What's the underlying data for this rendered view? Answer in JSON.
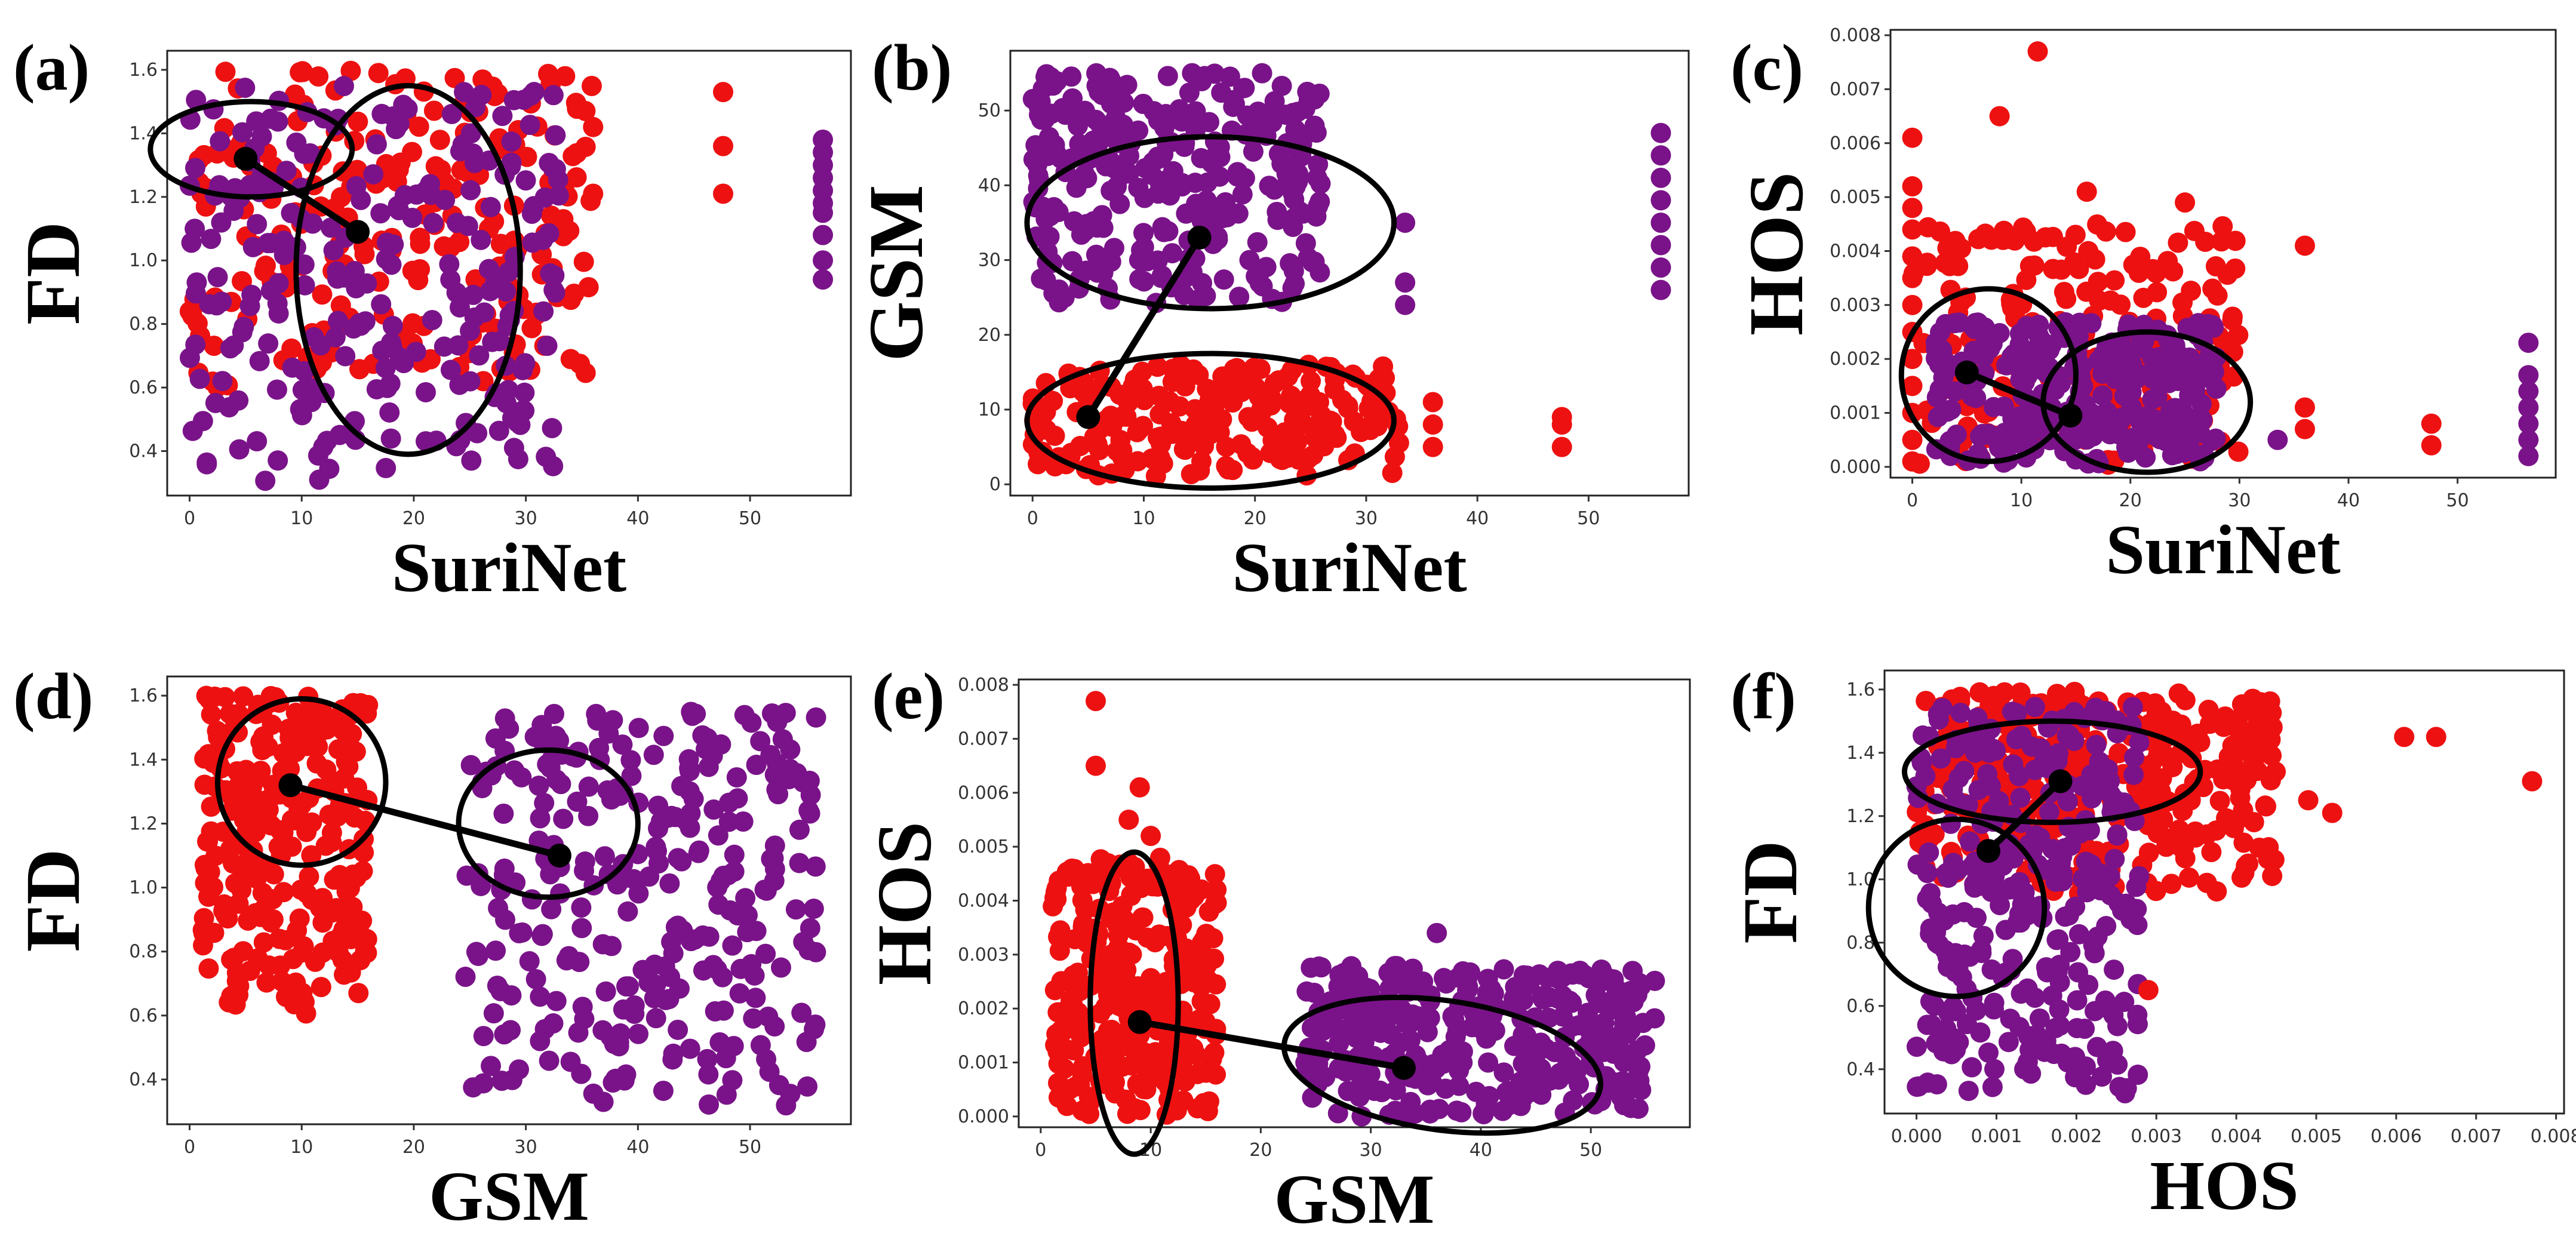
{
  "colors": {
    "red_cluster": "#ee1111",
    "purple_cluster": "#7a1389",
    "annotation": "#000000"
  },
  "chart_data": [
    {
      "id": "a",
      "label": "(a)",
      "type": "scatter",
      "xlabel": "SuriNet",
      "ylabel": "FD",
      "xlim": [
        -2,
        59
      ],
      "ylim": [
        0.26,
        1.66
      ],
      "xticks": [
        0,
        10,
        20,
        30,
        40,
        50
      ],
      "xtick_labels": [
        "0",
        "10",
        "20",
        "30",
        "40",
        "50"
      ],
      "yticks": [
        0.4,
        0.6,
        0.8,
        1.0,
        1.2,
        1.4,
        1.6
      ],
      "ytick_labels": [
        "0.4",
        "0.6",
        "0.8",
        "1.0",
        "1.2",
        "1.4",
        "1.6"
      ],
      "series": [
        {
          "color": "red",
          "x_range": [
            0,
            36
          ],
          "y_range": [
            0.6,
            1.6
          ],
          "count": 230,
          "seed": 11
        },
        {
          "color": "purple",
          "x_range": [
            0,
            33
          ],
          "y_range": [
            0.3,
            1.55
          ],
          "count": 260,
          "seed": 12
        }
      ],
      "points": [
        {
          "color": "red",
          "x": 47.6,
          "y": 1.53
        },
        {
          "color": "red",
          "x": 47.6,
          "y": 1.36
        },
        {
          "color": "red",
          "x": 47.6,
          "y": 1.21
        },
        {
          "color": "red",
          "x": 36,
          "y": 1.42
        },
        {
          "color": "red",
          "x": 36,
          "y": 1.21
        },
        {
          "color": "red",
          "x": 33.5,
          "y": 1.58
        },
        {
          "color": "purple",
          "x": 56.5,
          "y": 1.38
        },
        {
          "color": "purple",
          "x": 56.5,
          "y": 1.3
        },
        {
          "color": "purple",
          "x": 56.5,
          "y": 1.22
        },
        {
          "color": "purple",
          "x": 56.5,
          "y": 1.15
        },
        {
          "color": "purple",
          "x": 56.5,
          "y": 1.08
        },
        {
          "color": "purple",
          "x": 56.5,
          "y": 1.0
        },
        {
          "color": "purple",
          "x": 56.5,
          "y": 0.94
        },
        {
          "color": "purple",
          "x": 56.5,
          "y": 1.34
        },
        {
          "color": "purple",
          "x": 56.5,
          "y": 1.26
        },
        {
          "color": "purple",
          "x": 56.5,
          "y": 1.18
        }
      ],
      "centroids": [
        {
          "x": 5,
          "y": 1.32
        },
        {
          "x": 15,
          "y": 1.09
        }
      ],
      "ellipses": [
        {
          "cx": 5.5,
          "cy": 1.35,
          "rx": 9,
          "ry": 0.15,
          "rot": 0
        },
        {
          "cx": 19.5,
          "cy": 0.97,
          "rx": 10,
          "ry": 0.58,
          "rot": 0
        }
      ]
    },
    {
      "id": "b",
      "label": "(b)",
      "type": "scatter",
      "xlabel": "SuriNet",
      "ylabel": "GSM",
      "xlim": [
        -2,
        59
      ],
      "ylim": [
        -1.5,
        58
      ],
      "xticks": [
        0,
        10,
        20,
        30,
        40,
        50
      ],
      "xtick_labels": [
        "0",
        "10",
        "20",
        "30",
        "40",
        "50"
      ],
      "yticks": [
        0,
        10,
        20,
        30,
        40,
        50
      ],
      "ytick_labels": [
        "0",
        "10",
        "20",
        "30",
        "40",
        "50"
      ],
      "series": [
        {
          "color": "red",
          "x_range": [
            0,
            33
          ],
          "y_range": [
            1,
            16
          ],
          "count": 230,
          "seed": 21
        },
        {
          "color": "purple",
          "x_range": [
            0,
            26
          ],
          "y_range": [
            24,
            55
          ],
          "count": 300,
          "seed": 22
        }
      ],
      "points": [
        {
          "color": "red",
          "x": 36,
          "y": 11
        },
        {
          "color": "red",
          "x": 36,
          "y": 8
        },
        {
          "color": "red",
          "x": 36,
          "y": 5
        },
        {
          "color": "red",
          "x": 47.6,
          "y": 9
        },
        {
          "color": "red",
          "x": 47.6,
          "y": 8
        },
        {
          "color": "red",
          "x": 47.6,
          "y": 5
        },
        {
          "color": "purple",
          "x": 33.5,
          "y": 35
        },
        {
          "color": "purple",
          "x": 33.5,
          "y": 27
        },
        {
          "color": "purple",
          "x": 33.5,
          "y": 24
        },
        {
          "color": "purple",
          "x": 56.5,
          "y": 47
        },
        {
          "color": "purple",
          "x": 56.5,
          "y": 44
        },
        {
          "color": "purple",
          "x": 56.5,
          "y": 41
        },
        {
          "color": "purple",
          "x": 56.5,
          "y": 38
        },
        {
          "color": "purple",
          "x": 56.5,
          "y": 35
        },
        {
          "color": "purple",
          "x": 56.5,
          "y": 32
        },
        {
          "color": "purple",
          "x": 56.5,
          "y": 29
        },
        {
          "color": "purple",
          "x": 56.5,
          "y": 26
        }
      ],
      "centroids": [
        {
          "x": 5,
          "y": 9
        },
        {
          "x": 15,
          "y": 33
        }
      ],
      "ellipses": [
        {
          "cx": 16,
          "cy": 35,
          "rx": 16.5,
          "ry": 11.5,
          "rot": 0
        },
        {
          "cx": 16,
          "cy": 8.5,
          "rx": 16.5,
          "ry": 9,
          "rot": 0
        }
      ]
    },
    {
      "id": "c",
      "label": "(c)",
      "type": "scatter",
      "xlabel": "SuriNet",
      "ylabel": "HOS",
      "xlim": [
        -2,
        59
      ],
      "ylim": [
        -0.0002,
        0.0081
      ],
      "xticks": [
        0,
        10,
        20,
        30,
        40,
        50
      ],
      "xtick_labels": [
        "0",
        "10",
        "20",
        "30",
        "40",
        "50"
      ],
      "yticks": [
        0,
        0.001,
        0.002,
        0.003,
        0.004,
        0.005,
        0.006,
        0.007,
        0.008
      ],
      "ytick_labels": [
        "0.000",
        "0.001",
        "0.002",
        "0.003",
        "0.004",
        "0.005",
        "0.006",
        "0.007",
        "0.008"
      ],
      "series": [
        {
          "color": "red",
          "x_range": [
            0,
            30
          ],
          "y_range": [
            0,
            0.0045
          ],
          "count": 200,
          "seed": 31
        },
        {
          "color": "purple",
          "x_range": [
            2,
            28
          ],
          "y_range": [
            0,
            0.0027
          ],
          "count": 280,
          "seed": 32
        }
      ],
      "points": [
        {
          "color": "red",
          "x": 11.5,
          "y": 0.0077
        },
        {
          "color": "red",
          "x": 8,
          "y": 0.0065
        },
        {
          "color": "red",
          "x": 0,
          "y": 0.0061
        },
        {
          "color": "red",
          "x": 16,
          "y": 0.0051
        },
        {
          "color": "red",
          "x": 25,
          "y": 0.0049
        },
        {
          "color": "red",
          "x": 36,
          "y": 0.0041
        },
        {
          "color": "red",
          "x": 0,
          "y": 0.0052
        },
        {
          "color": "red",
          "x": 0,
          "y": 0.0048
        },
        {
          "color": "red",
          "x": 0,
          "y": 0.0044
        },
        {
          "color": "red",
          "x": 0,
          "y": 0.0039
        },
        {
          "color": "red",
          "x": 0,
          "y": 0.0035
        },
        {
          "color": "red",
          "x": 0,
          "y": 0.003
        },
        {
          "color": "red",
          "x": 0,
          "y": 0.0025
        },
        {
          "color": "red",
          "x": 0,
          "y": 0.002
        },
        {
          "color": "red",
          "x": 0,
          "y": 0.0015
        },
        {
          "color": "red",
          "x": 0,
          "y": 0.001
        },
        {
          "color": "red",
          "x": 0,
          "y": 0.0005
        },
        {
          "color": "red",
          "x": 0,
          "y": 0.0001
        },
        {
          "color": "red",
          "x": 47.6,
          "y": 0.0008
        },
        {
          "color": "red",
          "x": 47.6,
          "y": 0.0004
        },
        {
          "color": "red",
          "x": 36,
          "y": 0.0011
        },
        {
          "color": "red",
          "x": 36,
          "y": 0.0007
        },
        {
          "color": "purple",
          "x": 56.5,
          "y": 0.0023
        },
        {
          "color": "purple",
          "x": 56.5,
          "y": 0.0017
        },
        {
          "color": "purple",
          "x": 56.5,
          "y": 0.0014
        },
        {
          "color": "purple",
          "x": 56.5,
          "y": 0.0011
        },
        {
          "color": "purple",
          "x": 56.5,
          "y": 0.0008
        },
        {
          "color": "purple",
          "x": 56.5,
          "y": 0.0005
        },
        {
          "color": "purple",
          "x": 56.5,
          "y": 0.0002
        },
        {
          "color": "purple",
          "x": 33.5,
          "y": 0.0005
        }
      ],
      "centroids": [
        {
          "x": 5,
          "y": 0.00175
        },
        {
          "x": 14.5,
          "y": 0.00095
        }
      ],
      "ellipses": [
        {
          "cx": 7,
          "cy": 0.0017,
          "rx": 8,
          "ry": 0.0016,
          "rot": 0
        },
        {
          "cx": 21.5,
          "cy": 0.0012,
          "rx": 9.5,
          "ry": 0.0013,
          "rot": 0
        }
      ]
    },
    {
      "id": "d",
      "label": "(d)",
      "type": "scatter",
      "xlabel": "GSM",
      "ylabel": "FD",
      "xlim": [
        -2,
        59
      ],
      "ylim": [
        0.26,
        1.66
      ],
      "xticks": [
        0,
        10,
        20,
        30,
        40,
        50
      ],
      "xtick_labels": [
        "0",
        "10",
        "20",
        "30",
        "40",
        "50"
      ],
      "yticks": [
        0.4,
        0.6,
        0.8,
        1.0,
        1.2,
        1.4,
        1.6
      ],
      "ytick_labels": [
        "0.4",
        "0.6",
        "0.8",
        "1.0",
        "1.2",
        "1.4",
        "1.6"
      ],
      "series": [
        {
          "color": "red",
          "x_range": [
            1,
            16
          ],
          "y_range": [
            0.6,
            1.6
          ],
          "count": 260,
          "seed": 41
        },
        {
          "color": "purple",
          "x_range": [
            24,
            56
          ],
          "y_range": [
            0.3,
            1.55
          ],
          "count": 300,
          "seed": 42
        }
      ],
      "points": [],
      "centroids": [
        {
          "x": 9,
          "y": 1.32
        },
        {
          "x": 33,
          "y": 1.1
        }
      ],
      "ellipses": [
        {
          "cx": 10,
          "cy": 1.33,
          "rx": 7.5,
          "ry": 0.26,
          "rot": 0
        },
        {
          "cx": 32,
          "cy": 1.2,
          "rx": 8,
          "ry": 0.23,
          "rot": 0
        }
      ]
    },
    {
      "id": "e",
      "label": "(e)",
      "type": "scatter",
      "xlabel": "GSM",
      "ylabel": "HOS",
      "xlim": [
        -2,
        59
      ],
      "ylim": [
        -0.0002,
        0.0081
      ],
      "xticks": [
        0,
        10,
        20,
        30,
        40,
        50
      ],
      "xtick_labels": [
        "0",
        "10",
        "20",
        "30",
        "40",
        "50"
      ],
      "yticks": [
        0,
        0.001,
        0.002,
        0.003,
        0.004,
        0.005,
        0.006,
        0.007,
        0.008
      ],
      "ytick_labels": [
        "0.000",
        "0.001",
        "0.002",
        "0.003",
        "0.004",
        "0.005",
        "0.006",
        "0.007",
        "0.008"
      ],
      "series": [
        {
          "color": "red",
          "x_range": [
            1,
            16
          ],
          "y_range": [
            0,
            0.0048
          ],
          "count": 300,
          "seed": 51
        },
        {
          "color": "purple",
          "x_range": [
            24,
            56
          ],
          "y_range": [
            0,
            0.0028
          ],
          "count": 320,
          "seed": 52
        }
      ],
      "points": [
        {
          "color": "red",
          "x": 5,
          "y": 0.0077
        },
        {
          "color": "red",
          "x": 5,
          "y": 0.0065
        },
        {
          "color": "red",
          "x": 9,
          "y": 0.0061
        },
        {
          "color": "red",
          "x": 10,
          "y": 0.0052
        },
        {
          "color": "red",
          "x": 8,
          "y": 0.0055
        },
        {
          "color": "purple",
          "x": 36,
          "y": 0.0034
        },
        {
          "color": "purple",
          "x": 47,
          "y": 0.0027
        },
        {
          "color": "purple",
          "x": 49,
          "y": 0.0027
        }
      ],
      "centroids": [
        {
          "x": 9,
          "y": 0.00175
        },
        {
          "x": 33,
          "y": 0.0009
        }
      ],
      "ellipses": [
        {
          "cx": 8.5,
          "cy": 0.0021,
          "rx": 4,
          "ry": 0.0028,
          "rot": 0
        },
        {
          "cx": 36.5,
          "cy": 0.00095,
          "rx": 14.5,
          "ry": 0.0012,
          "rot": 8
        }
      ]
    },
    {
      "id": "f",
      "label": "(f)",
      "type": "scatter",
      "xlabel": "HOS",
      "ylabel": "FD",
      "xlim": [
        -0.0004,
        0.0081
      ],
      "ylim": [
        0.26,
        1.66
      ],
      "xticks": [
        0,
        0.001,
        0.002,
        0.003,
        0.004,
        0.005,
        0.006,
        0.007,
        0.008
      ],
      "xtick_labels": [
        "0.000",
        "0.001",
        "0.002",
        "0.003",
        "0.004",
        "0.005",
        "0.006",
        "0.007",
        "0.008"
      ],
      "yticks": [
        0.4,
        0.6,
        0.8,
        1.0,
        1.2,
        1.4,
        1.6
      ],
      "ytick_labels": [
        "0.4",
        "0.6",
        "0.8",
        "1.0",
        "1.2",
        "1.4",
        "1.6"
      ],
      "series": [
        {
          "color": "red",
          "x_range": [
            0,
            0.0045
          ],
          "y_range": [
            0.95,
            1.6
          ],
          "count": 330,
          "seed": 61
        },
        {
          "color": "purple",
          "x_range": [
            0,
            0.0028
          ],
          "y_range": [
            0.3,
            1.55
          ],
          "count": 320,
          "seed": 62
        }
      ],
      "points": [
        {
          "color": "red",
          "x": 0.0061,
          "y": 1.45
        },
        {
          "color": "red",
          "x": 0.0065,
          "y": 1.45
        },
        {
          "color": "red",
          "x": 0.0077,
          "y": 1.31
        },
        {
          "color": "red",
          "x": 0.0052,
          "y": 1.21
        },
        {
          "color": "red",
          "x": 0.0049,
          "y": 1.25
        },
        {
          "color": "red",
          "x": 0.0029,
          "y": 0.65
        },
        {
          "color": "red",
          "x": 0.0041,
          "y": 1.02
        }
      ],
      "centroids": [
        {
          "x": 0.0009,
          "y": 1.09
        },
        {
          "x": 0.0018,
          "y": 1.31
        }
      ],
      "ellipses": [
        {
          "cx": 0.0017,
          "cy": 1.34,
          "rx": 0.00185,
          "ry": 0.16,
          "rot": 0
        },
        {
          "cx": 0.0005,
          "cy": 0.91,
          "rx": 0.0011,
          "ry": 0.28,
          "rot": 0
        }
      ]
    }
  ]
}
